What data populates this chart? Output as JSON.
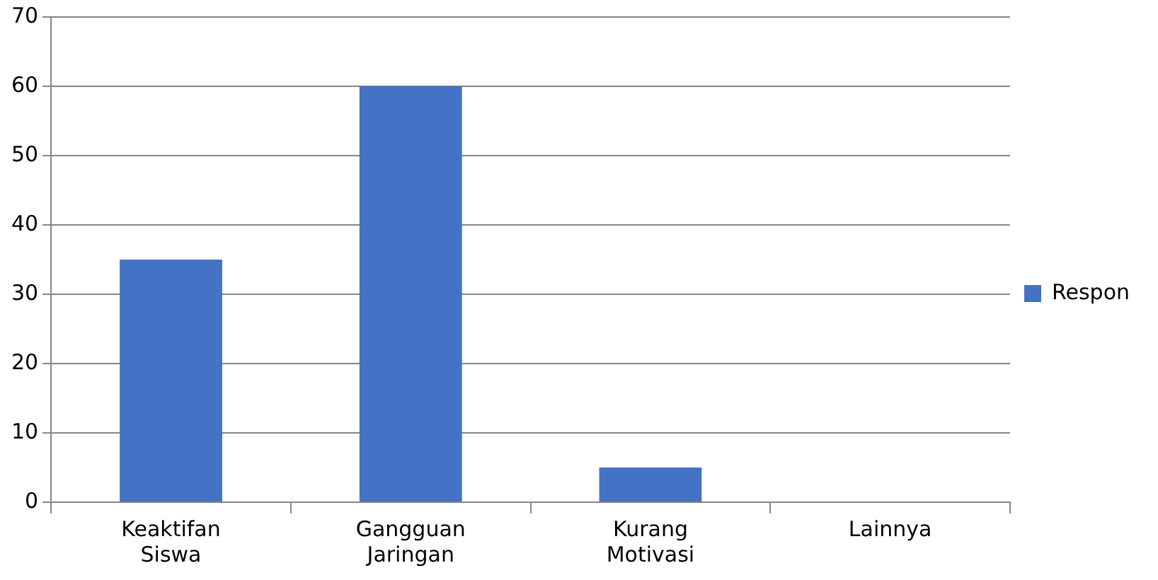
{
  "chart_data": {
    "type": "bar",
    "categories": [
      "Keaktifan Siswa",
      "Gangguan Jaringan",
      "Kurang Motivasi",
      "Lainnya"
    ],
    "series": [
      {
        "name": "Respon",
        "color": "#4472c4",
        "values": [
          35,
          60,
          5,
          0
        ]
      }
    ],
    "ylim": [
      0,
      70
    ],
    "yticks": [
      0,
      10,
      20,
      30,
      40,
      50,
      60,
      70
    ],
    "grid": "y",
    "legend": "right"
  }
}
